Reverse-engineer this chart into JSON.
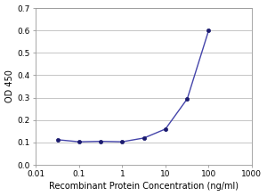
{
  "x_values": [
    0.032,
    0.1,
    0.32,
    1.0,
    3.2,
    10.0,
    32.0,
    100.0
  ],
  "y_values": [
    0.112,
    0.103,
    0.105,
    0.103,
    0.12,
    0.16,
    0.295,
    0.6
  ],
  "line_color": "#4444aa",
  "marker_color": "#1a1a6e",
  "marker_style": "o",
  "marker_size": 3,
  "line_width": 1.0,
  "xlabel": "Recombinant Protein Concentration (ng/ml)",
  "ylabel": "OD 450",
  "xlabel_fontsize": 7,
  "ylabel_fontsize": 7,
  "xlim": [
    0.01,
    1000
  ],
  "ylim": [
    0.0,
    0.7
  ],
  "yticks": [
    0.0,
    0.1,
    0.2,
    0.3,
    0.4,
    0.5,
    0.6,
    0.7
  ],
  "background_color": "#ffffff",
  "grid_color": "#bbbbbb",
  "tick_fontsize": 6.5,
  "figure_width": 3.0,
  "figure_height": 2.2
}
